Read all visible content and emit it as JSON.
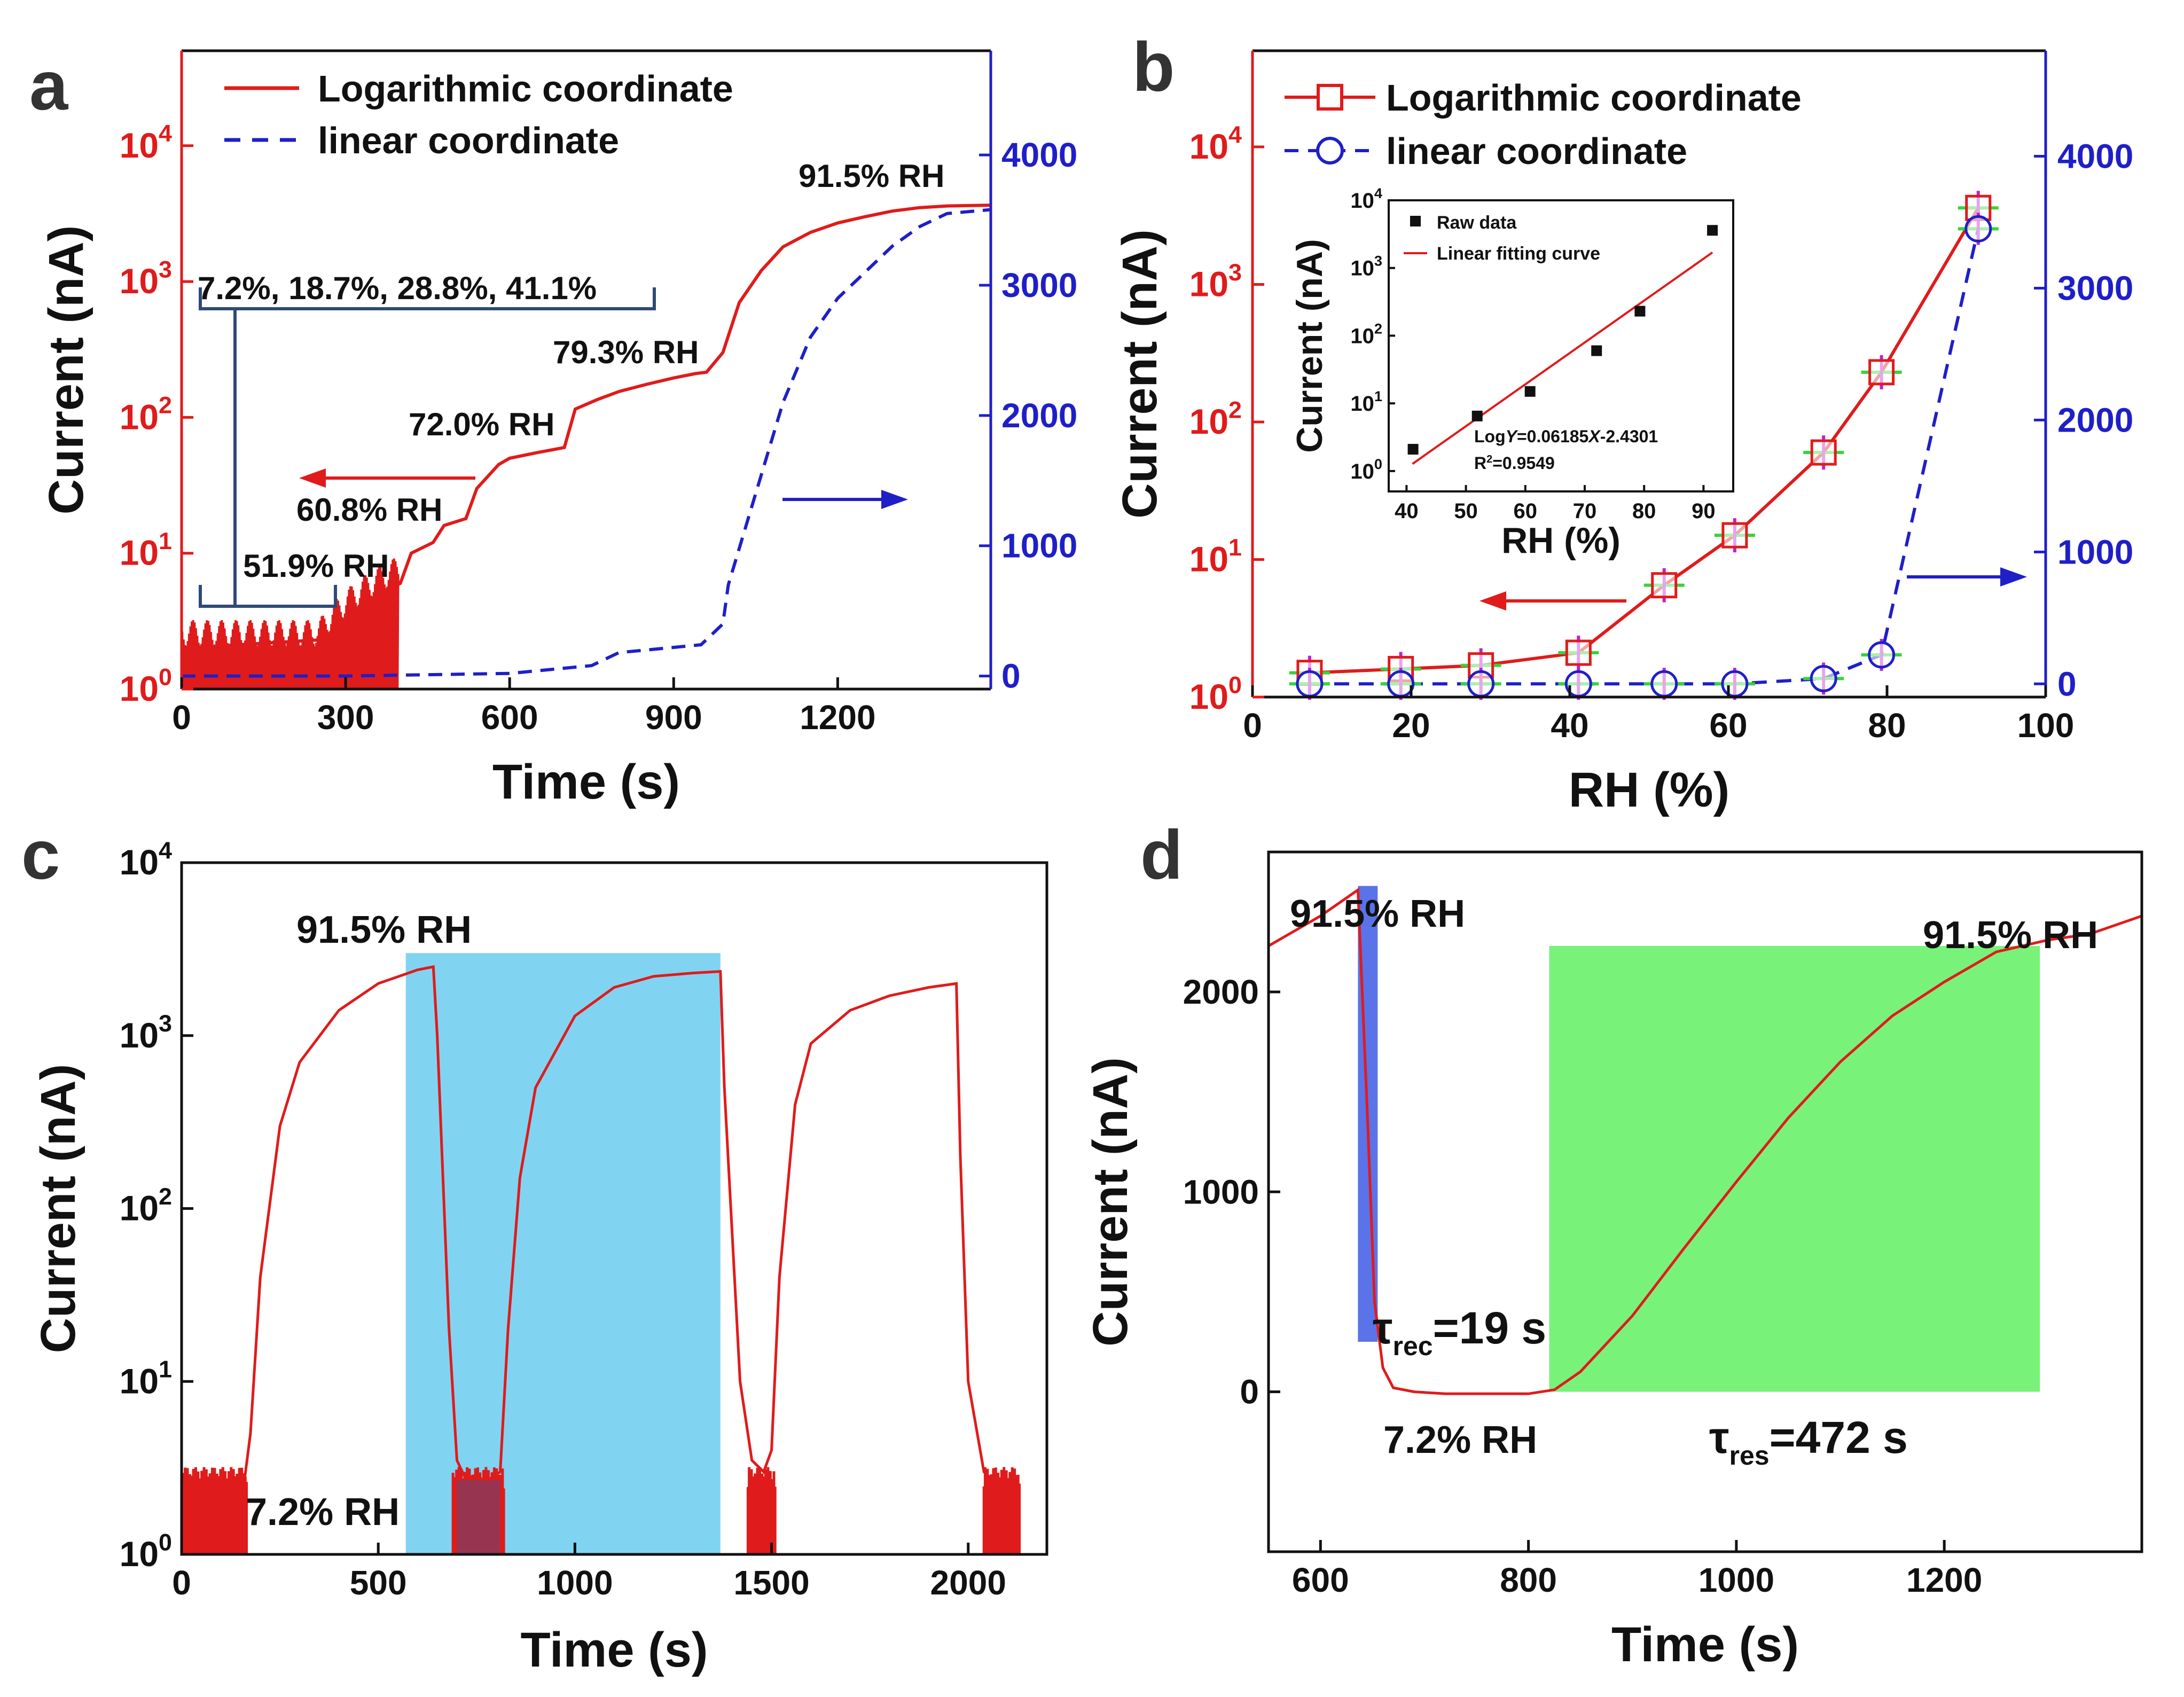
{
  "colors": {
    "red": "#e01b1b",
    "blue": "#1f1fc8",
    "black": "#111111",
    "navy": "#2e4a78",
    "cyan": "#80d4f2",
    "green": "#79f27a",
    "blueBar": "#5a73e8",
    "magenta": "#c020d0",
    "lime": "#36d43a"
  },
  "chart_data": [
    {
      "panel": "a",
      "type": "line",
      "xlabel": "Time (s)",
      "ylabel": "Current (nA)",
      "xlim": [
        0,
        1480
      ],
      "ylim_log": [
        1,
        50000
      ],
      "y2lim": [
        -100,
        4800
      ],
      "xticks": [
        "0",
        "300",
        "600",
        "900",
        "1200"
      ],
      "yticks_log": [
        {
          "exp": "0",
          "base": "10"
        },
        {
          "exp": "1",
          "base": "10"
        },
        {
          "exp": "2",
          "base": "10"
        },
        {
          "exp": "3",
          "base": "10"
        },
        {
          "exp": "4",
          "base": "10"
        }
      ],
      "y2ticks": [
        "0",
        "1000",
        "2000",
        "3000",
        "4000"
      ],
      "legend": [
        "Logarithmic coordinate",
        "linear coordinate"
      ],
      "series": [
        {
          "name": "Logarithmic coordinate",
          "axis": "left-log",
          "style": "solid",
          "x": [
            0,
            250,
            300,
            360,
            400,
            420,
            460,
            480,
            520,
            540,
            580,
            600,
            650,
            700,
            720,
            760,
            800,
            850,
            900,
            940,
            960,
            990,
            1020,
            1060,
            1100,
            1150,
            1200,
            1250,
            1300,
            1350,
            1400,
            1480
          ],
          "y": [
            2,
            2.3,
            3,
            5,
            6,
            10,
            12,
            16,
            18,
            30,
            45,
            50,
            55,
            60,
            115,
            135,
            155,
            175,
            195,
            210,
            215,
            300,
            700,
            1200,
            1800,
            2300,
            2700,
            3000,
            3300,
            3500,
            3600,
            3650
          ]
        },
        {
          "name": "linear coordinate",
          "axis": "right-linear",
          "style": "dashed",
          "x": [
            0,
            300,
            600,
            750,
            800,
            900,
            950,
            990,
            1000,
            1050,
            1100,
            1150,
            1200,
            1250,
            1300,
            1350,
            1400,
            1480
          ],
          "y": [
            0,
            0,
            20,
            80,
            180,
            220,
            240,
            400,
            700,
            1400,
            2100,
            2600,
            2900,
            3100,
            3300,
            3450,
            3550,
            3580
          ]
        }
      ],
      "annotations": [
        "91.5% RH",
        "79.3% RH",
        "72.0% RH",
        "60.8% RH",
        "51.9% RH",
        "7.2%, 18.7%, 28.8%, 41.1%"
      ]
    },
    {
      "panel": "b",
      "type": "line",
      "xlabel": "RH (%)",
      "ylabel": "Current (nA)",
      "xlim": [
        0,
        100
      ],
      "ylim_log": [
        1,
        50000
      ],
      "y2lim": [
        -100,
        4800
      ],
      "xticks": [
        "0",
        "20",
        "40",
        "60",
        "80",
        "100"
      ],
      "yticks_log": [
        {
          "exp": "0",
          "base": "10"
        },
        {
          "exp": "1",
          "base": "10"
        },
        {
          "exp": "2",
          "base": "10"
        },
        {
          "exp": "3",
          "base": "10"
        },
        {
          "exp": "4",
          "base": "10"
        }
      ],
      "y2ticks": [
        "0",
        "1000",
        "2000",
        "3000",
        "4000"
      ],
      "legend": [
        "Logarithmic coordinate",
        "linear coordinate"
      ],
      "series": [
        {
          "name": "Logarithmic coordinate",
          "axis": "left-log",
          "marker": "square",
          "x": [
            7.2,
            18.7,
            28.8,
            41.1,
            51.9,
            60.8,
            72.0,
            79.3,
            91.5
          ],
          "y": [
            1.5,
            1.6,
            1.7,
            2.1,
            6.5,
            15,
            60,
            230,
            3600
          ]
        },
        {
          "name": "linear coordinate",
          "axis": "right-linear",
          "marker": "circle",
          "x": [
            7.2,
            18.7,
            28.8,
            41.1,
            51.9,
            60.8,
            72.0,
            79.3,
            91.5
          ],
          "y": [
            0,
            0,
            0,
            0,
            0,
            0,
            40,
            220,
            3450
          ]
        }
      ],
      "inset": {
        "xlabel": "RH (%)",
        "ylabel": "Current (nA)",
        "xlim": [
          37,
          95
        ],
        "ylim_log": [
          0.5,
          10000
        ],
        "xticks": [
          "40",
          "50",
          "60",
          "70",
          "80",
          "90"
        ],
        "yticks_log": [
          {
            "exp": "0",
            "base": "10"
          },
          {
            "exp": "1",
            "base": "10"
          },
          {
            "exp": "2",
            "base": "10"
          },
          {
            "exp": "3",
            "base": "10"
          },
          {
            "exp": "4",
            "base": "10"
          }
        ],
        "legend": [
          "Raw data",
          "Linear fitting curve"
        ],
        "raw_x": [
          41.1,
          51.9,
          60.8,
          72.0,
          79.3,
          91.5
        ],
        "raw_y": [
          2.1,
          6.5,
          15,
          60,
          230,
          3600
        ],
        "fit_slope": 0.06185,
        "fit_intercept": -2.4301,
        "equation_prefix": "Log",
        "equation_y": "Y",
        "equation_mid": "=0.06185",
        "equation_x": "X",
        "equation_suffix": "-2.4301",
        "r2_r": "R",
        "r2_sup": "2",
        "r2_value": "=0.9549"
      }
    },
    {
      "panel": "c",
      "type": "line",
      "xlabel": "Time (s)",
      "ylabel": "Current (nA)",
      "xlim": [
        0,
        2200
      ],
      "ylim_log": [
        1,
        10000
      ],
      "xticks": [
        "0",
        "500",
        "1000",
        "1500",
        "2000"
      ],
      "yticks_log": [
        {
          "exp": "0",
          "base": "10"
        },
        {
          "exp": "1",
          "base": "10"
        },
        {
          "exp": "2",
          "base": "10"
        },
        {
          "exp": "3",
          "base": "10"
        },
        {
          "exp": "4",
          "base": "10"
        }
      ],
      "series": [
        {
          "name": "current",
          "axis": "left-log",
          "x": [
            0,
            160,
            175,
            200,
            250,
            300,
            400,
            500,
            600,
            640,
            650,
            680,
            700,
            720,
            780,
            810,
            830,
            860,
            900,
            1000,
            1100,
            1200,
            1300,
            1370,
            1380,
            1420,
            1450,
            1480,
            1500,
            1520,
            1560,
            1600,
            1700,
            1800,
            1900,
            1970,
            1980,
            2000,
            2040,
            2060,
            2130
          ],
          "y": [
            2.7,
            2.7,
            5,
            40,
            300,
            700,
            1400,
            2000,
            2400,
            2500,
            1000,
            20,
            3.5,
            2.8,
            2.7,
            3,
            20,
            150,
            500,
            1300,
            1900,
            2200,
            2300,
            2350,
            500,
            10,
            3.5,
            3,
            4,
            40,
            400,
            900,
            1400,
            1700,
            1900,
            2000,
            200,
            10,
            3,
            2.7,
            2.7
          ]
        }
      ],
      "annotations": [
        "91.5% RH",
        "7.2% RH"
      ]
    },
    {
      "panel": "d",
      "type": "line",
      "xlabel": "Time (s)",
      "ylabel": "Current (nA)",
      "xlim": [
        550,
        1390
      ],
      "ylim": [
        -800,
        2700
      ],
      "xticks": [
        "600",
        "800",
        "1000",
        "1200"
      ],
      "yticks": [
        "0",
        "1000",
        "2000"
      ],
      "series": [
        {
          "name": "current",
          "axis": "left-linear",
          "x": [
            550,
            600,
            636,
            645,
            652,
            660,
            670,
            690,
            720,
            800,
            825,
            850,
            900,
            950,
            1000,
            1050,
            1100,
            1150,
            1200,
            1250,
            1300,
            1340,
            1390
          ],
          "y": [
            2230,
            2380,
            2510,
            1400,
            450,
            120,
            20,
            0,
            -10,
            -10,
            10,
            100,
            380,
            720,
            1050,
            1370,
            1650,
            1880,
            2050,
            2200,
            2260,
            2290,
            2380
          ]
        }
      ],
      "annotations": [
        "91.5% RH",
        "91.5% RH",
        "7.2% RH"
      ],
      "tau_rec": {
        "symbol": "τ",
        "sub": "rec",
        "value": "=19 s"
      },
      "tau_res": {
        "symbol": "τ",
        "sub": "res",
        "value": "=472 s"
      }
    }
  ],
  "panels": {
    "a": "a",
    "b": "b",
    "c": "c",
    "d": "d"
  }
}
